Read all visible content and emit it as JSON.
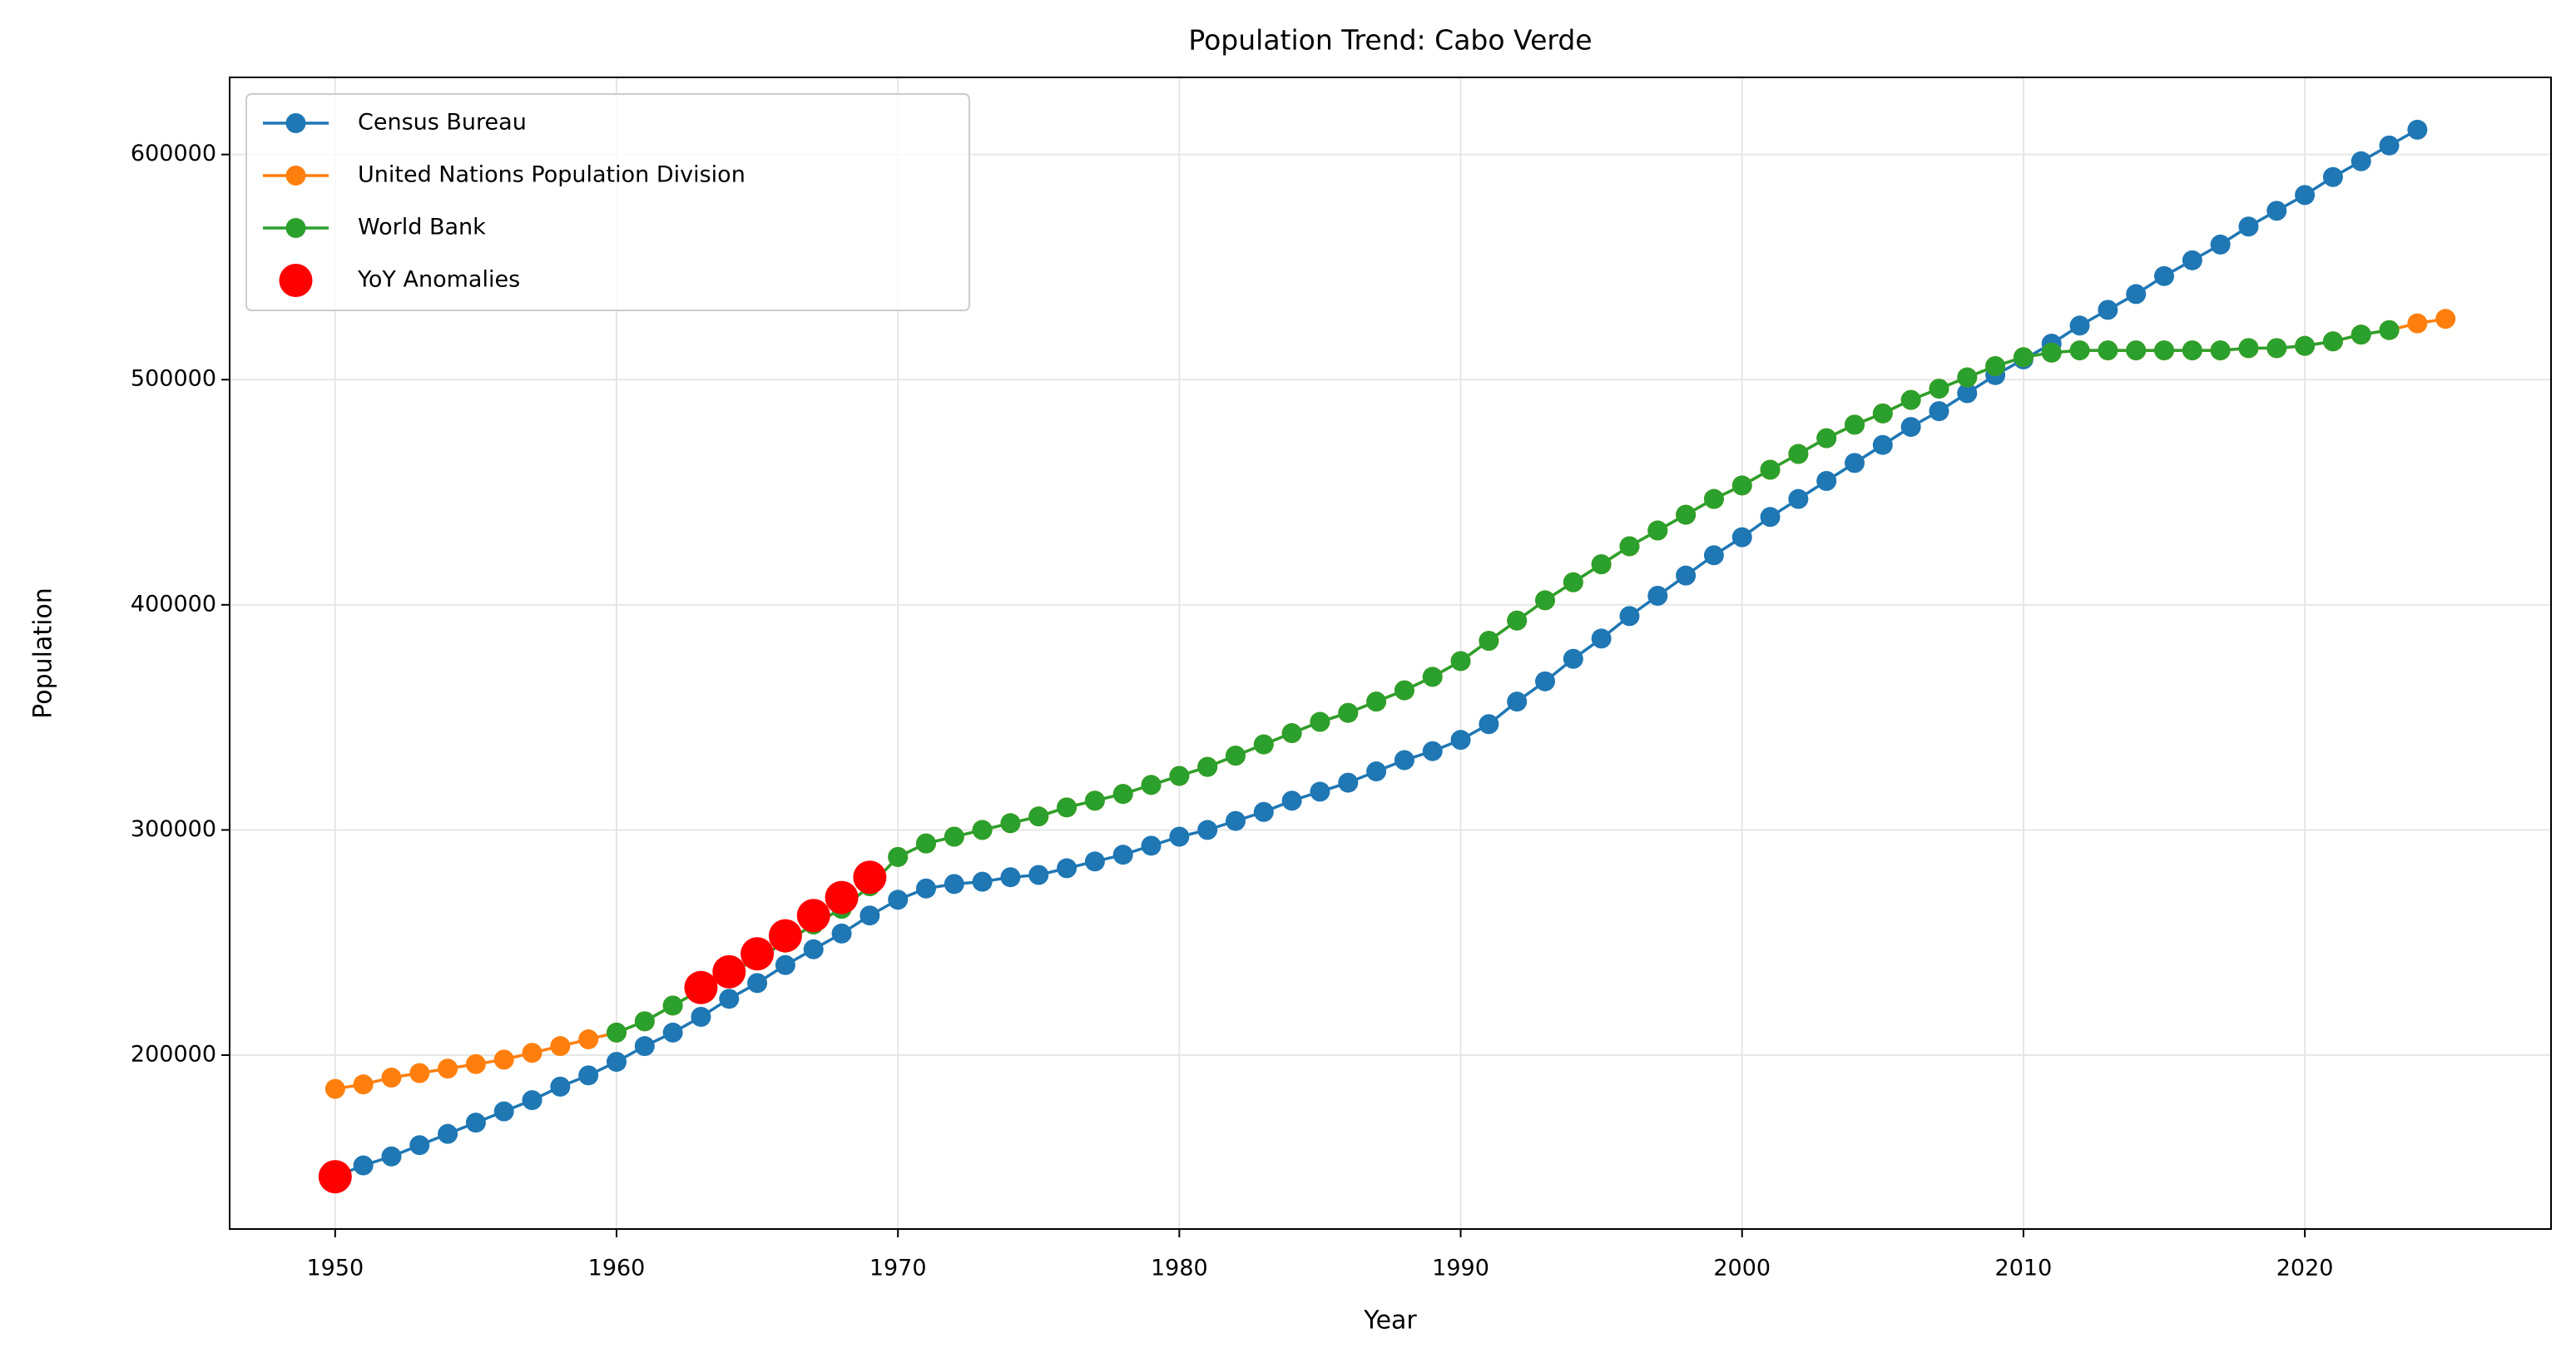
{
  "chart_data": {
    "type": "line",
    "title": "Population Trend: Cabo Verde",
    "xlabel": "Year",
    "ylabel": "Population",
    "x": [
      1950,
      1951,
      1952,
      1953,
      1954,
      1955,
      1956,
      1957,
      1958,
      1959,
      1960,
      1961,
      1962,
      1963,
      1964,
      1965,
      1966,
      1967,
      1968,
      1969,
      1970,
      1971,
      1972,
      1973,
      1974,
      1975,
      1976,
      1977,
      1978,
      1979,
      1980,
      1981,
      1982,
      1983,
      1984,
      1985,
      1986,
      1987,
      1988,
      1989,
      1990,
      1991,
      1992,
      1993,
      1994,
      1995,
      1996,
      1997,
      1998,
      1999,
      2000,
      2001,
      2002,
      2003,
      2004,
      2005,
      2006,
      2007,
      2008,
      2009,
      2010,
      2011,
      2012,
      2013,
      2014,
      2015,
      2016,
      2017,
      2018,
      2019,
      2020,
      2021,
      2022,
      2023,
      2024,
      2025
    ],
    "series": [
      {
        "name": "Census Bureau",
        "color": "#1f77b4",
        "type": "line",
        "values": [
          146000,
          151000,
          155000,
          160000,
          165000,
          170000,
          175000,
          180000,
          186000,
          191000,
          197000,
          204000,
          210000,
          217000,
          225000,
          232000,
          240000,
          247000,
          254000,
          262000,
          269000,
          274000,
          276000,
          277000,
          279000,
          280000,
          283000,
          286000,
          289000,
          293000,
          297000,
          300000,
          304000,
          308000,
          313000,
          317000,
          321000,
          326000,
          331000,
          335000,
          340000,
          347000,
          357000,
          366000,
          376000,
          385000,
          395000,
          404000,
          413000,
          422000,
          430000,
          439000,
          447000,
          455000,
          463000,
          471000,
          479000,
          486000,
          494000,
          502000,
          509000,
          516000,
          524000,
          531000,
          538000,
          546000,
          553000,
          560000,
          568000,
          575000,
          582000,
          590000,
          597000,
          604000,
          611000,
          null
        ]
      },
      {
        "name": "United Nations Population Division",
        "color": "#ff7f0e",
        "type": "line",
        "values": [
          185000,
          187000,
          190000,
          192000,
          194000,
          196000,
          198000,
          201000,
          204000,
          207000,
          210000,
          215000,
          222000,
          229000,
          236000,
          243000,
          250000,
          258000,
          265000,
          275000,
          288000,
          294000,
          297000,
          300000,
          303000,
          306000,
          310000,
          313000,
          316000,
          320000,
          324000,
          328000,
          333000,
          338000,
          343000,
          348000,
          352000,
          357000,
          362000,
          368000,
          375000,
          384000,
          393000,
          402000,
          410000,
          418000,
          426000,
          433000,
          440000,
          447000,
          453000,
          460000,
          467000,
          474000,
          480000,
          485000,
          491000,
          496000,
          501000,
          506000,
          510000,
          512000,
          513000,
          513000,
          513000,
          513000,
          513000,
          513000,
          514000,
          514000,
          515000,
          517000,
          520000,
          522000,
          525000,
          527000
        ]
      },
      {
        "name": "World Bank",
        "color": "#2ca02c",
        "type": "line",
        "values": [
          null,
          null,
          null,
          null,
          null,
          null,
          null,
          null,
          null,
          null,
          210000,
          215000,
          222000,
          229000,
          236000,
          243000,
          250000,
          258000,
          265000,
          275000,
          288000,
          294000,
          297000,
          300000,
          303000,
          306000,
          310000,
          313000,
          316000,
          320000,
          324000,
          328000,
          333000,
          338000,
          343000,
          348000,
          352000,
          357000,
          362000,
          368000,
          375000,
          384000,
          393000,
          402000,
          410000,
          418000,
          426000,
          433000,
          440000,
          447000,
          453000,
          460000,
          467000,
          474000,
          480000,
          485000,
          491000,
          496000,
          501000,
          506000,
          510000,
          512000,
          513000,
          513000,
          513000,
          513000,
          513000,
          513000,
          514000,
          514000,
          515000,
          517000,
          520000,
          522000,
          null,
          null
        ]
      },
      {
        "name": "YoY Anomalies",
        "color": "#ff0000",
        "type": "scatter",
        "x": [
          1950,
          1963,
          1964,
          1965,
          1966,
          1967,
          1968,
          1969
        ],
        "values": [
          146000,
          230000,
          237000,
          245000,
          253000,
          262000,
          270000,
          279000
        ]
      }
    ],
    "xlim": [
      1946.25,
      2028.75
    ],
    "xticks": [
      1950,
      1960,
      1970,
      1980,
      1990,
      2000,
      2010,
      2020
    ],
    "ylim": [
      122750,
      634250
    ],
    "yticks": [
      200000,
      300000,
      400000,
      500000,
      600000
    ],
    "grid": true,
    "legend": "upper left"
  }
}
